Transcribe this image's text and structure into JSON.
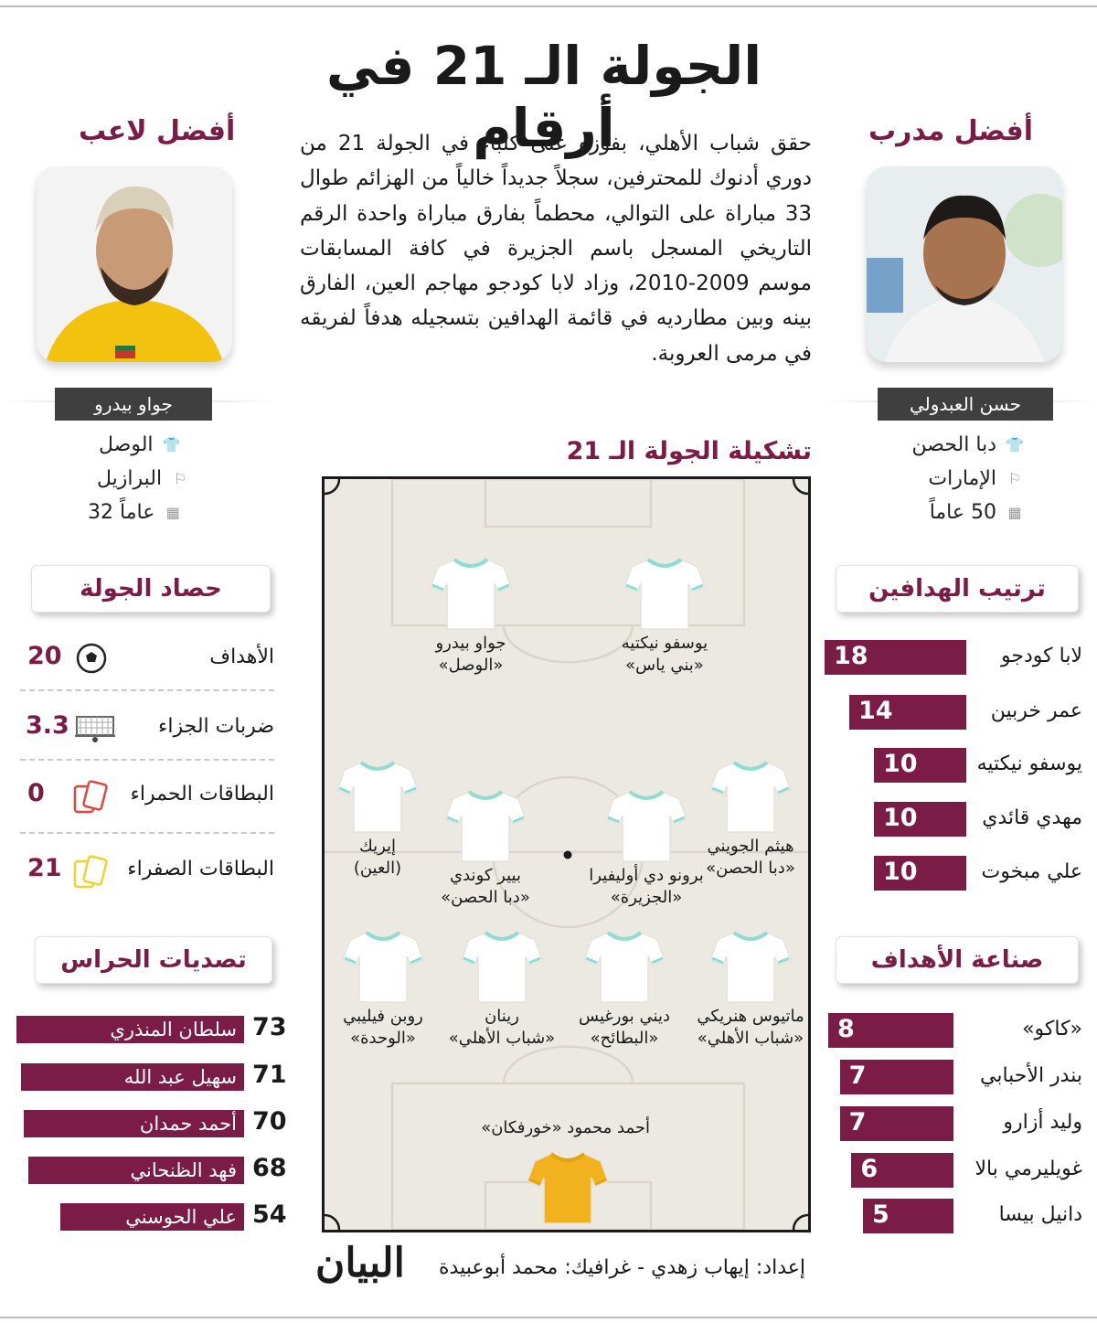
{
  "title": "الجولة الـ 21 في أرقام",
  "best_coach": {
    "heading": "أفضل مدرب",
    "name": "حسن العبدولي",
    "club": "دبا الحصن",
    "nationality": "الإمارات",
    "age": "50 عاماً"
  },
  "best_player": {
    "heading": "أفضل لاعب",
    "name": "جواو بيدرو",
    "club": "الوصل",
    "nationality": "البرازيل",
    "age": "32 عاماً"
  },
  "intro": "حقق شباب الأهلي، بفوزه على كلباء في الجولة 21 من دوري أدنوك للمحترفين، سجلاً جديداً خالياً من الهزائم طوال 33 مباراة على التوالي، محطماً بفارق مباراة واحدة الرقم التاريخي المسجل باسم الجزيرة في كافة المسابقات موسم 2009-2010، وزاد لابا كودجو مهاجم العين، الفارق بينه وبين مطارديه في قائمة الهدافين بتسجيله هدفاً لفريقه في مرمى العروبة.",
  "round_stats": {
    "heading": "حصاد الجولة",
    "items": [
      {
        "label": "الأهداف",
        "value": "20",
        "icon": "football-icon"
      },
      {
        "label": "ضربات الجزاء",
        "value": "3.3",
        "icon": "goal-net-icon"
      },
      {
        "label": "البطاقات الحمراء",
        "value": "0",
        "icon": "red-card-icon"
      },
      {
        "label": "البطاقات الصفراء",
        "value": "21",
        "icon": "yellow-card-icon"
      }
    ]
  },
  "top_scorers": {
    "heading": "ترتيب الهدافين",
    "items": [
      {
        "name": "لابا كودجو",
        "value": 18
      },
      {
        "name": "عمر خربين",
        "value": 14
      },
      {
        "name": "يوسفو نيكتيه",
        "value": 10
      },
      {
        "name": "مهدي قائدي",
        "value": 10
      },
      {
        "name": "علي مبخوت",
        "value": 10
      }
    ]
  },
  "top_assisters": {
    "heading": "صناعة الأهداف",
    "items": [
      {
        "name": "«كاكو»",
        "value": 8
      },
      {
        "name": "بندر الأحبابي",
        "value": 7
      },
      {
        "name": "وليد أزارو",
        "value": 7
      },
      {
        "name": "غويليرمي بالا",
        "value": 6
      },
      {
        "name": "دانيل بيسا",
        "value": 5
      }
    ]
  },
  "keeper_saves": {
    "heading": "تصديات الحراس",
    "items": [
      {
        "name": "سلطان المنذري",
        "value": 73
      },
      {
        "name": "سهيل عبد الله",
        "value": 71
      },
      {
        "name": "أحمد حمدان",
        "value": 70
      },
      {
        "name": "فهد الظنحاني",
        "value": 68
      },
      {
        "name": "علي الحوسني",
        "value": 54
      }
    ]
  },
  "lineup": {
    "heading": "تشكيلة الجولة الـ 21",
    "forwards": [
      {
        "name": "يوسفو نيكتيه",
        "club": "«بني ياس»"
      },
      {
        "name": "جواو بيدرو",
        "club": "«الوصل»"
      }
    ],
    "midfielders": [
      {
        "name": "هيثم الجويني",
        "club": "«دبا الحصن»"
      },
      {
        "name": "برونو دي أوليفيرا",
        "club": "«الجزيرة»"
      },
      {
        "name": "بيير كوندي",
        "club": "«دبا الحصن»"
      },
      {
        "name": "إيريك",
        "club": "(العين)"
      }
    ],
    "defenders": [
      {
        "name": "ماتيوس هنريكي",
        "club": "«شباب الأهلي»"
      },
      {
        "name": "ديني بورغيس",
        "club": "«البطائح»"
      },
      {
        "name": "رينان",
        "club": "«شباب الأهلي»"
      },
      {
        "name": "روبن فيليبي",
        "club": "«الوحدة»"
      }
    ],
    "goalkeeper": {
      "name": "أحمد محمود «خورفكان»"
    }
  },
  "credit": "إعداد: إيهاب زهدي - غرافيك: محمد أبوعبيدة",
  "logo": "البيان",
  "colors": {
    "accent": "#7a1c45",
    "pitch": "#ece9e2",
    "keeper_shirt": "#f2b21d",
    "shirt_trim": "#8fdcd0"
  }
}
